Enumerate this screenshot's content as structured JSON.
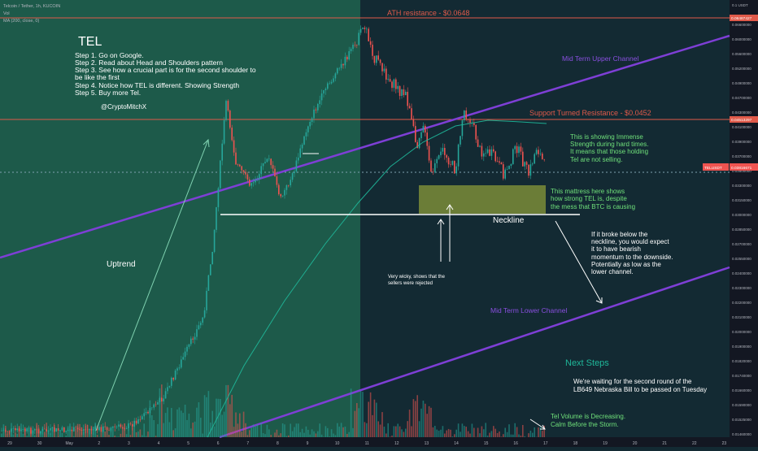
{
  "header": {
    "symbol_line": "Telcoin / Tether, 1h, KUCOIN",
    "indicator_vol": "Vol",
    "indicator_ma": "MA (200, close, 0)"
  },
  "colors": {
    "bg_right": "#132a33",
    "bg_left": "#1d5a4a",
    "up": "#26a69a",
    "down": "#ef5350",
    "channel": "#7e3fd6",
    "resistance": "#e05a4a",
    "mattress": "#8a9a3a",
    "note_green": "#6fe07a",
    "note_white": "#ffffff"
  },
  "chart_data": {
    "type": "candlestick",
    "price_axis_ticks": [
      "0.06600000",
      "0.06000000",
      "0.05600000",
      "0.05200000",
      "0.04900000",
      "0.04700000",
      "0.04300000",
      "0.04100000",
      "0.03900000",
      "0.03700000",
      "0.03500000",
      "0.03300000",
      "0.03150000",
      "0.03000000",
      "0.02850000",
      "0.02700000",
      "0.02550000",
      "0.02400000",
      "0.02300000",
      "0.02200000",
      "0.02100000",
      "0.02000000",
      "0.01900000",
      "0.01820000",
      "0.01740000",
      "0.01660000",
      "0.01590000",
      "0.01525000",
      "0.01460000"
    ],
    "price_axis_top_label": "0.1 USDT",
    "time_ticks": [
      "29",
      "30",
      "May",
      "2",
      "3",
      "4",
      "5",
      "6",
      "7",
      "8",
      "9",
      "10",
      "11",
      "12",
      "13",
      "14",
      "15",
      "16",
      "17",
      "18",
      "19",
      "20",
      "21",
      "22",
      "23"
    ],
    "price_labels": {
      "ath": "0.06487427",
      "support_resistance": "0.04513297",
      "last": "0.03816671",
      "last_name": "TELUSDT"
    },
    "ma": {
      "name": "MA (200)"
    }
  },
  "annotations": {
    "title": "TEL",
    "steps": [
      "Step 1. Go on Google.",
      "Step 2. Read about Head and Shoulders pattern",
      "Step 3. See how a crucial part is for the second shoulder to",
      "be like the first",
      "Step 4. Notice how TEL is different. Showing Strength",
      "Step 5. Buy more Tel."
    ],
    "author": "@CryptoMitchX",
    "ath_label": "ATH resistance - $0.0648",
    "support_label": "Support Turned Resistance - $0.0452",
    "upper_channel": "Mid Term Upper Channel",
    "lower_channel": "Mid Term Lower Channel",
    "uptrend": "Uptrend",
    "neckline": "Neckline",
    "immense": [
      "This is showing Immense",
      "Strength during hard times.",
      "It means that those holding",
      "Tel are not selling."
    ],
    "mattress": [
      "This mattress here shows",
      "how strong TEL is, despite",
      "the mess that BTC is causing"
    ],
    "break_below": [
      "If it broke below the",
      "neckline, you would expect",
      "it to have bearish",
      "momentum to the downside.",
      "Potentially as low as the",
      "lower channel."
    ],
    "wicky": [
      "Very wicky, shows that the",
      "sellers were rejected"
    ],
    "next_steps": "Next Steps",
    "waiting": [
      "We're waiting for the second round of the",
      "LB649 Nebraska Bill to be passed on Tuesday"
    ],
    "volume_note": [
      "Tel Volume is Decreasing.",
      "Calm Before the Storm."
    ]
  }
}
